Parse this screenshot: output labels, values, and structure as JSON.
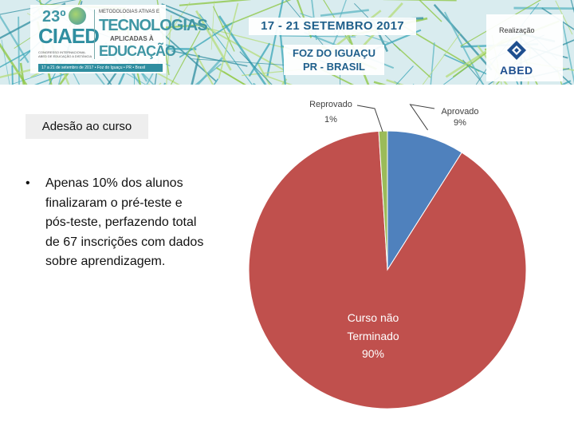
{
  "banner": {
    "logo_number": "23º",
    "logo_name": "CIAED",
    "logo_subtitle": "CONGRESSO INTERNACIONAL ABED DE EDUCAÇÃO A DISTÂNCIA",
    "logo_topline": "METODOLOGIAS ATIVAS E",
    "logo_word1": "TECNOLOGIAS",
    "logo_word2": "APLICADAS À",
    "logo_word3": "EDUCAÇÃO",
    "logo_strip": "17 a 21 de setembro de 2017 • Foz do Iguaçu • PR • Brasil",
    "dates": "17 - 21 SETEMBRO 2017",
    "place_line1": "FOZ DO IGUAÇU",
    "place_line2": "PR - BRASIL",
    "realization_label": "Realização",
    "org_name": "ABED"
  },
  "slide": {
    "title": "Adesão ao curso",
    "bullet": "Apenas 10% dos alunos finalizaram o pré-teste e pós-teste, perfazendo total de 67 inscrições com dados sobre aprendizagem."
  },
  "chart_data": {
    "type": "pie",
    "title": "",
    "slices": [
      {
        "label": "Aprovado",
        "value": 9,
        "value_label": "9%",
        "color": "#4f81bd"
      },
      {
        "label": "Curso não Terminado",
        "value": 90,
        "value_label": "90%",
        "color": "#c0504d"
      },
      {
        "label": "Reprovado",
        "value": 1,
        "value_label": "1%",
        "color": "#9bbb59"
      }
    ],
    "legend": "none",
    "data_labels": "callouts"
  }
}
